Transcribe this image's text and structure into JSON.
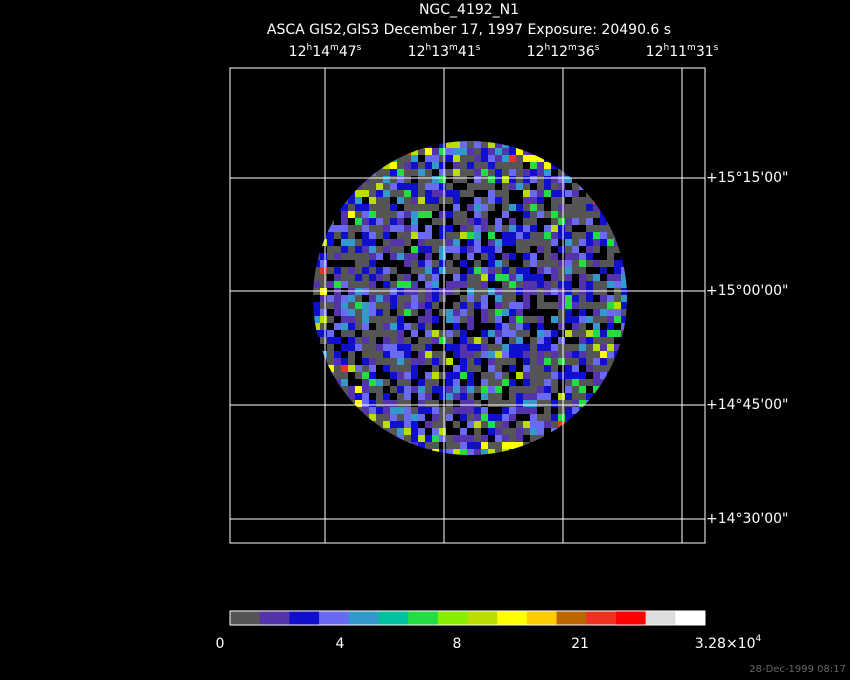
{
  "title": "NGC_4192_N1",
  "subtitle": "ASCA GIS2,GIS3 December 17, 1997 Exposure: 20490.6 s",
  "ra_labels": [
    [
      "12",
      "h",
      "14",
      "m",
      "47",
      "s"
    ],
    [
      "12",
      "h",
      "13",
      "m",
      "41",
      "s"
    ],
    [
      "12",
      "h",
      "12",
      "m",
      "36",
      "s"
    ],
    [
      "12",
      "h",
      "11",
      "m",
      "31",
      "s"
    ]
  ],
  "dec_labels": [
    "+15°15'00\"",
    "+15°00'00\"",
    "+14°45'00\"",
    "+14°30'00\""
  ],
  "colorbar": {
    "colors": [
      "#555555",
      "#5533aa",
      "#1010cc",
      "#6a6af0",
      "#3399cc",
      "#00c0a0",
      "#22dd44",
      "#88ee00",
      "#bbdd00",
      "#ffff00",
      "#ffcc00",
      "#bb6600",
      "#ee3322",
      "#ff0000",
      "#dddddd",
      "#ffffff"
    ],
    "labels": [
      "0",
      "4",
      "8",
      "21",
      "3.28×10"
    ],
    "max_exponent": "4"
  },
  "timestamp": "28-Dec-1999 08:17"
}
